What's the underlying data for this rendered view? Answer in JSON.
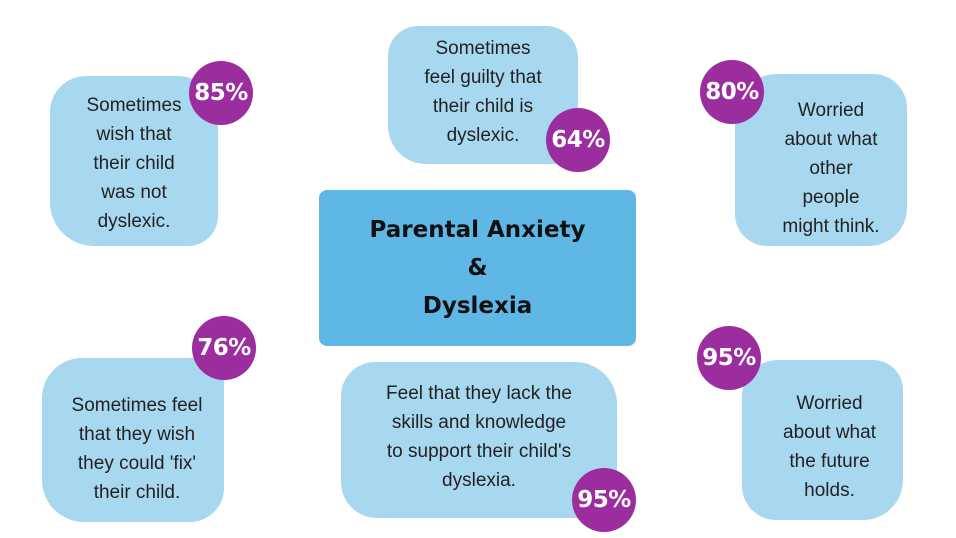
{
  "title": {
    "line1": "Parental Anxiety",
    "line2": "&",
    "line3": "Dyslexia"
  },
  "stats": [
    {
      "percent": "85%",
      "text": "Sometimes\nwish that\ntheir child\nwas not\ndyslexic."
    },
    {
      "percent": "64%",
      "text": "Sometimes\nfeel guilty that\ntheir child is\ndyslexic."
    },
    {
      "percent": "80%",
      "text": "Worried\nabout what\nother\npeople\nmight think."
    },
    {
      "percent": "76%",
      "text": "Sometimes feel\nthat they wish\nthey could 'fix'\ntheir child."
    },
    {
      "percent": "95%",
      "text": "Feel that they lack the\nskills and knowledge\nto support their child's\ndyslexia."
    },
    {
      "percent": "95%",
      "text": "Worried\nabout what\nthe future\nholds."
    }
  ],
  "colors": {
    "card": "#a8d8f0",
    "center": "#5fb7e6",
    "badge": "#9b2d9e"
  }
}
